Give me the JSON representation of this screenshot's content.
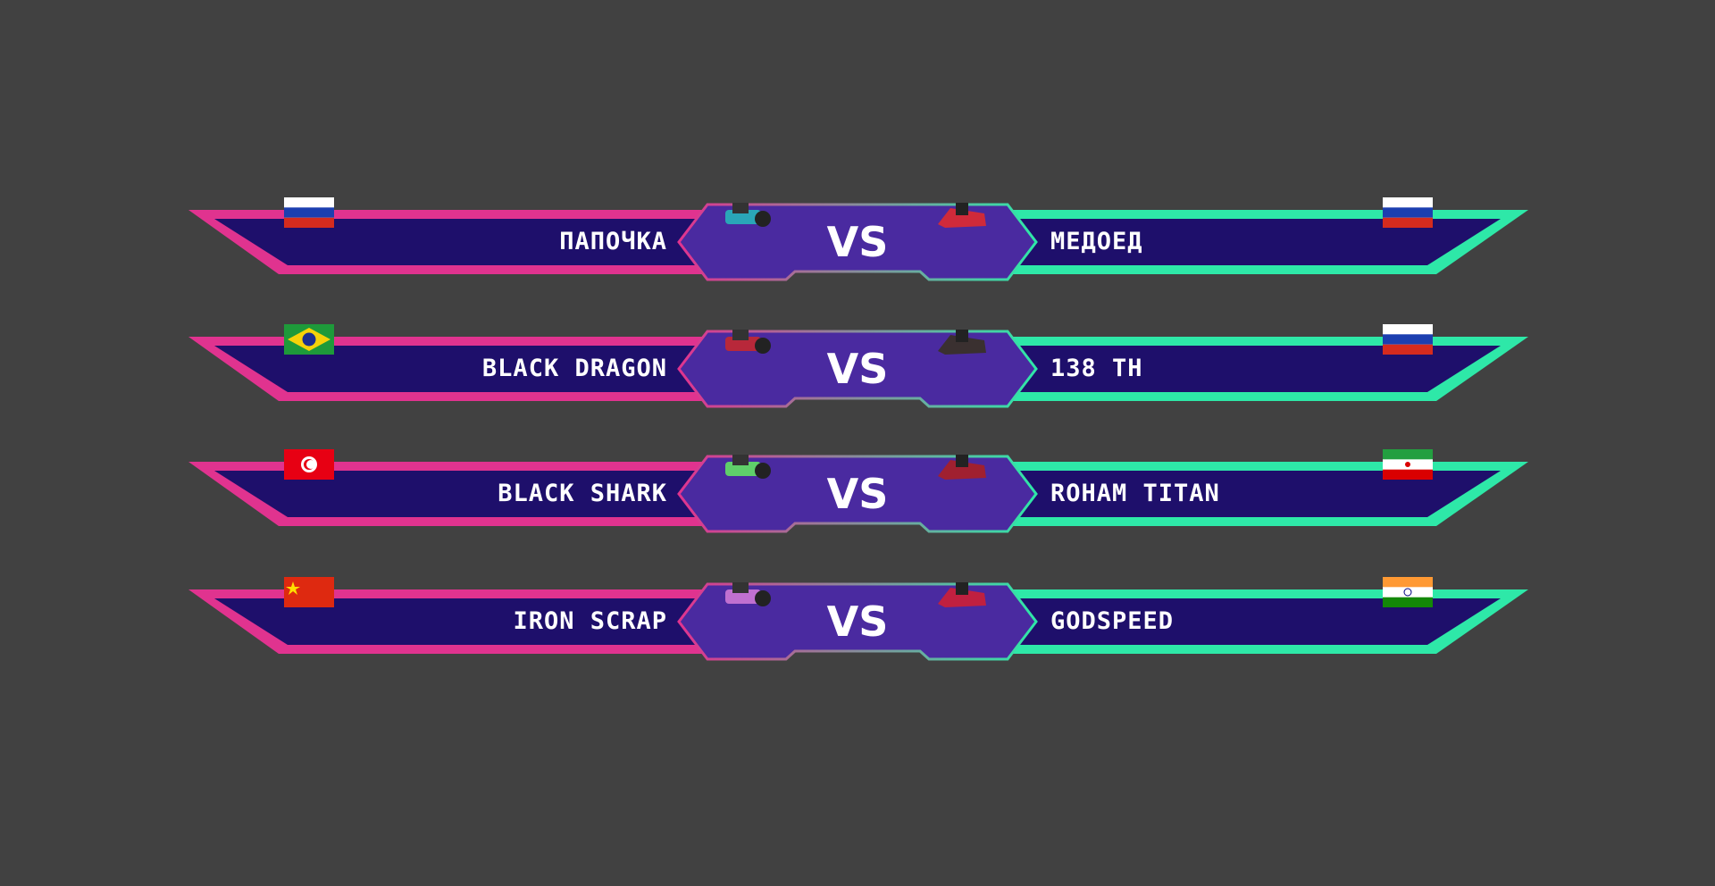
{
  "colors": {
    "background": "#414141",
    "left_border": "#e0338f",
    "right_border": "#2ee8a8",
    "panel": "#1e0f6b",
    "center": "#4a2aa0"
  },
  "vs_label": "VS",
  "matches": [
    {
      "left": {
        "name": "ПАПОЧКА",
        "flag": "russia",
        "robot_color": "#2aa6b8"
      },
      "right": {
        "name": "МЕДОЕД",
        "flag": "russia",
        "robot_color": "#d02a3a"
      }
    },
    {
      "left": {
        "name": "BLACK DRAGON",
        "flag": "brazil",
        "robot_color": "#b8283a"
      },
      "right": {
        "name": "138 TH",
        "flag": "russia",
        "robot_color": "#3a3030"
      }
    },
    {
      "left": {
        "name": "BLACK SHARK",
        "flag": "tunisia",
        "robot_color": "#5fcf6a"
      },
      "right": {
        "name": "ROHAM TITAN",
        "flag": "iran",
        "robot_color": "#a02030"
      }
    },
    {
      "left": {
        "name": "IRON SCRAP",
        "flag": "china",
        "robot_color": "#c070d0"
      },
      "right": {
        "name": "GODSPEED",
        "flag": "india",
        "robot_color": "#c02040"
      }
    }
  ]
}
